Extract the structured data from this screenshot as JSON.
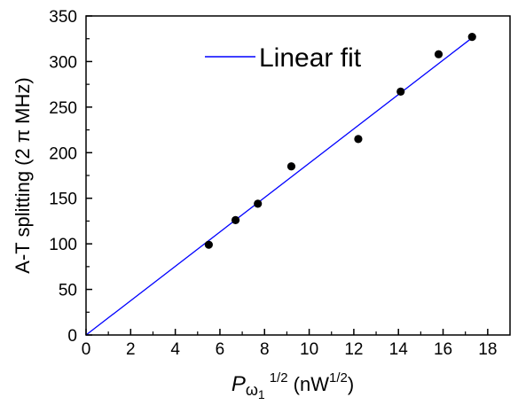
{
  "chart_data": {
    "type": "scatter",
    "title": "",
    "xlabel": {
      "symbol": "P",
      "subscript_main": "ω",
      "subscript_index": "1",
      "exponent": "1/2",
      "unit_prefix": " (nW",
      "unit_exponent": "1/2",
      "unit_suffix": ")"
    },
    "ylabel": "A-T splitting (2 π MHz)",
    "xlim": [
      0,
      19
    ],
    "ylim": [
      0,
      350
    ],
    "x_ticks": [
      "0",
      "2",
      "4",
      "6",
      "8",
      "10",
      "12",
      "14",
      "16",
      "18"
    ],
    "y_ticks": [
      "0",
      "50",
      "100",
      "150",
      "200",
      "250",
      "300",
      "350"
    ],
    "series": [
      {
        "kind": "points",
        "color": "#000000",
        "points": [
          {
            "x": 5.5,
            "y": 99
          },
          {
            "x": 6.7,
            "y": 126
          },
          {
            "x": 7.7,
            "y": 144
          },
          {
            "x": 9.2,
            "y": 185
          },
          {
            "x": 12.2,
            "y": 215
          },
          {
            "x": 14.1,
            "y": 267
          },
          {
            "x": 15.8,
            "y": 308
          },
          {
            "x": 17.3,
            "y": 327
          }
        ]
      },
      {
        "kind": "line",
        "name": "Linear fit",
        "color": "#0000ff",
        "x": [
          0,
          17.3
        ],
        "y": [
          0,
          326
        ]
      }
    ],
    "legend": {
      "position": "top-center",
      "entries": [
        "Linear fit"
      ]
    },
    "grid": false
  }
}
